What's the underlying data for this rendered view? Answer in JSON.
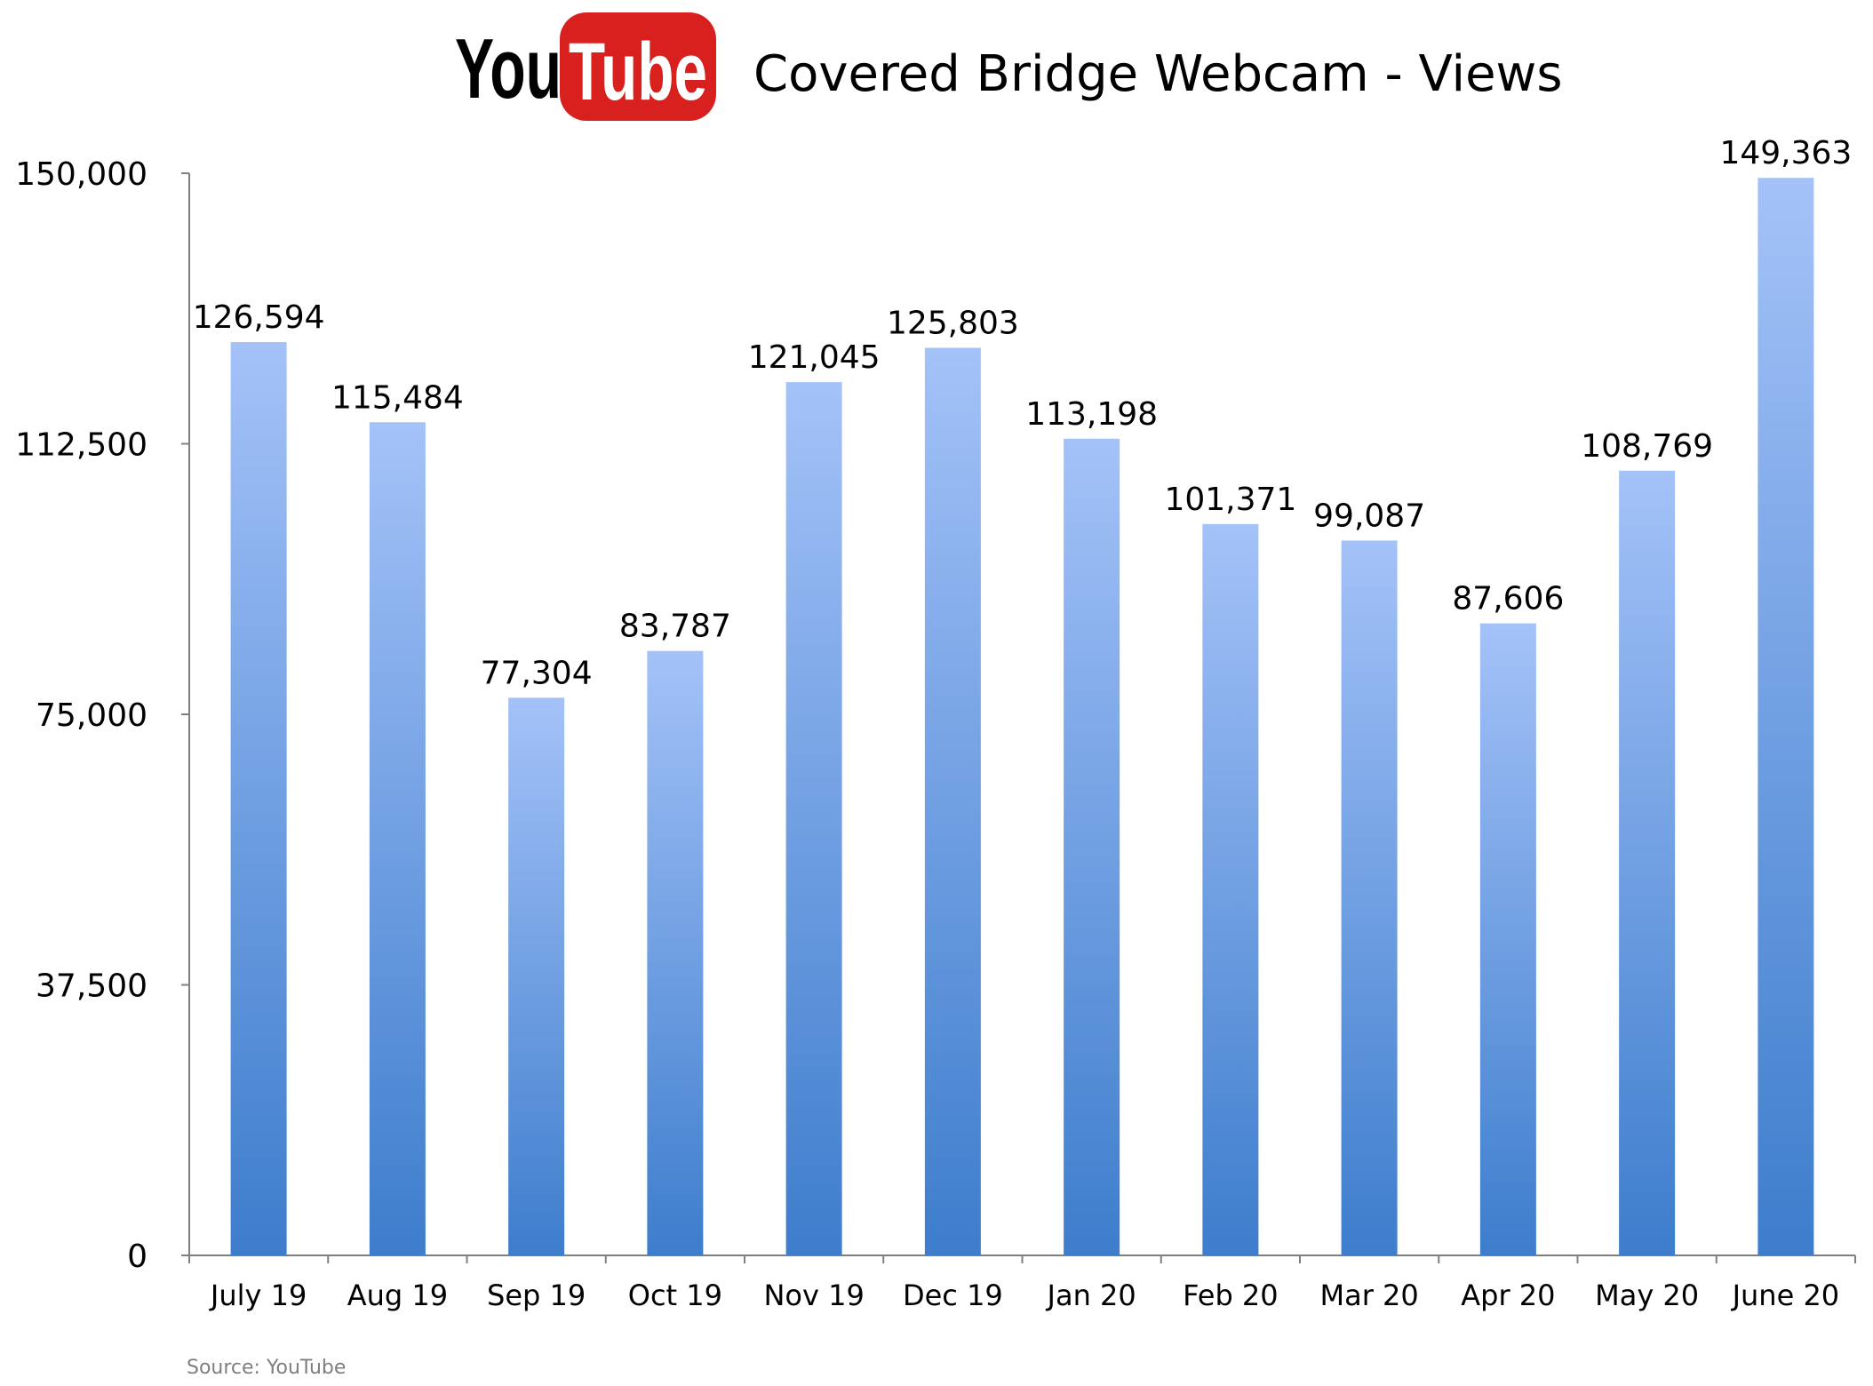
{
  "logo": {
    "part1": "You",
    "part2": "Tube",
    "badge_color": "#d8211f"
  },
  "chart_data": {
    "type": "bar",
    "title": "Covered Bridge Webcam - Views",
    "categories": [
      "July 19",
      "Aug 19",
      "Sep 19",
      "Oct 19",
      "Nov 19",
      "Dec 19",
      "Jan 20",
      "Feb 20",
      "Mar 20",
      "Apr 20",
      "May 20",
      "June 20"
    ],
    "values": [
      126594,
      115484,
      77304,
      83787,
      121045,
      125803,
      113198,
      101371,
      99087,
      87606,
      108769,
      149363
    ],
    "value_labels": [
      "126,594",
      "115,484",
      "77,304",
      "83,787",
      "121,045",
      "125,803",
      "113,198",
      "101,371",
      "99,087",
      "87,606",
      "108,769",
      "149,363"
    ],
    "yticks": [
      0,
      37500,
      75000,
      112500,
      150000
    ],
    "ytick_labels": [
      "0",
      "37,500",
      "75,000",
      "112,500",
      "150,000"
    ],
    "ylim": [
      0,
      150000
    ],
    "grid": false,
    "legend": "none",
    "bar_color_top": "#a4c2f8",
    "bar_color_bottom": "#3d7dcc"
  },
  "source": "Source: YouTube"
}
